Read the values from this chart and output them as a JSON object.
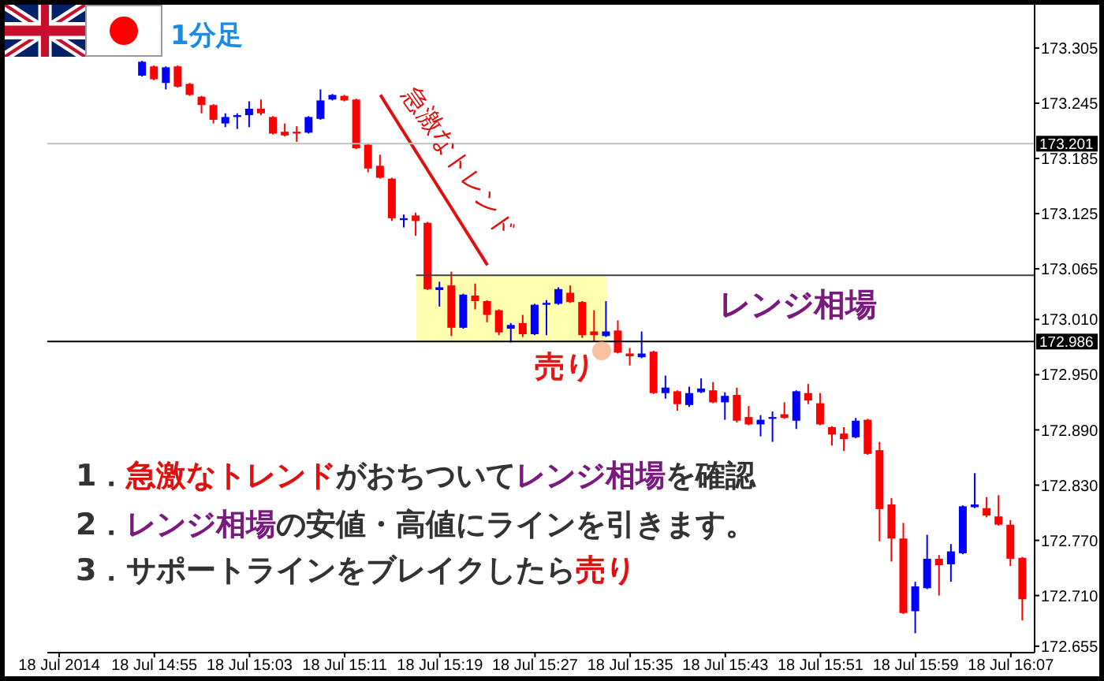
{
  "chart_data": {
    "type": "candlestick",
    "x": [
      "2014-07-18T14:54",
      "2014-07-18T14:55",
      "2014-07-18T14:56",
      "2014-07-18T14:57",
      "2014-07-18T14:58",
      "2014-07-18T14:59",
      "2014-07-18T15:00",
      "2014-07-18T15:01",
      "2014-07-18T15:02",
      "2014-07-18T15:03",
      "2014-07-18T15:04",
      "2014-07-18T15:05",
      "2014-07-18T15:06",
      "2014-07-18T15:07",
      "2014-07-18T15:08",
      "2014-07-18T15:09",
      "2014-07-18T15:10",
      "2014-07-18T15:11",
      "2014-07-18T15:12",
      "2014-07-18T15:13",
      "2014-07-18T15:14",
      "2014-07-18T15:15",
      "2014-07-18T15:16",
      "2014-07-18T15:17",
      "2014-07-18T15:18",
      "2014-07-18T15:19",
      "2014-07-18T15:20",
      "2014-07-18T15:21",
      "2014-07-18T15:22",
      "2014-07-18T15:23",
      "2014-07-18T15:24",
      "2014-07-18T15:25",
      "2014-07-18T15:26",
      "2014-07-18T15:27",
      "2014-07-18T15:28",
      "2014-07-18T15:29",
      "2014-07-18T15:30",
      "2014-07-18T15:31",
      "2014-07-18T15:32",
      "2014-07-18T15:33",
      "2014-07-18T15:34",
      "2014-07-18T15:35",
      "2014-07-18T15:36",
      "2014-07-18T15:37",
      "2014-07-18T15:38",
      "2014-07-18T15:39",
      "2014-07-18T15:40",
      "2014-07-18T15:41",
      "2014-07-18T15:42",
      "2014-07-18T15:43",
      "2014-07-18T15:44",
      "2014-07-18T15:45",
      "2014-07-18T15:46",
      "2014-07-18T15:47",
      "2014-07-18T15:48",
      "2014-07-18T15:49",
      "2014-07-18T15:50",
      "2014-07-18T15:51",
      "2014-07-18T15:52",
      "2014-07-18T15:53",
      "2014-07-18T15:54",
      "2014-07-18T15:55",
      "2014-07-18T15:56",
      "2014-07-18T15:57",
      "2014-07-18T15:58",
      "2014-07-18T15:59",
      "2014-07-18T16:00",
      "2014-07-18T16:01",
      "2014-07-18T16:02",
      "2014-07-18T16:03",
      "2014-07-18T16:04",
      "2014-07-18T16:05",
      "2014-07-18T16:06",
      "2014-07-18T16:07",
      "2014-07-18T16:08"
    ],
    "ohlc": [
      [
        173.275,
        173.291,
        173.274,
        173.29
      ],
      [
        173.285,
        173.286,
        173.27,
        173.271
      ],
      [
        173.267,
        173.285,
        173.26,
        173.284
      ],
      [
        173.285,
        173.286,
        173.262,
        173.263
      ],
      [
        173.266,
        173.267,
        173.253,
        173.254
      ],
      [
        173.252,
        173.253,
        173.234,
        173.243
      ],
      [
        173.243,
        173.244,
        173.223,
        173.227
      ],
      [
        173.223,
        173.234,
        173.219,
        173.23
      ],
      [
        173.23,
        173.234,
        173.217,
        173.232
      ],
      [
        173.232,
        173.247,
        173.219,
        173.239
      ],
      [
        173.239,
        173.249,
        173.232,
        173.234
      ],
      [
        173.23,
        173.231,
        173.211,
        173.212
      ],
      [
        173.214,
        173.223,
        173.209,
        173.21
      ],
      [
        173.214,
        173.22,
        173.203,
        173.212
      ],
      [
        173.213,
        173.231,
        173.212,
        173.23
      ],
      [
        173.228,
        173.26,
        173.227,
        173.248
      ],
      [
        173.249,
        173.255,
        173.248,
        173.254
      ],
      [
        173.253,
        173.254,
        173.247,
        173.248
      ],
      [
        173.249,
        173.25,
        173.195,
        173.196
      ],
      [
        173.2,
        173.201,
        173.17,
        173.174
      ],
      [
        173.177,
        173.189,
        173.163,
        173.164
      ],
      [
        173.163,
        173.164,
        173.117,
        173.12
      ],
      [
        173.118,
        173.124,
        173.11,
        173.12
      ],
      [
        173.123,
        173.126,
        173.101,
        173.117
      ],
      [
        173.115,
        173.116,
        173.042,
        173.043
      ],
      [
        173.042,
        173.051,
        173.024,
        173.045
      ],
      [
        173.047,
        173.062,
        172.992,
        173.001
      ],
      [
        173.001,
        173.038,
        173.0,
        173.037
      ],
      [
        173.036,
        173.049,
        173.021,
        173.03
      ],
      [
        173.03,
        173.031,
        173.007,
        173.015
      ],
      [
        173.02,
        173.021,
        172.993,
        172.996
      ],
      [
        173.0,
        173.006,
        172.985,
        173.004
      ],
      [
        173.006,
        173.015,
        172.991,
        172.994
      ],
      [
        172.994,
        173.027,
        172.993,
        173.026
      ],
      [
        173.026,
        173.031,
        172.993,
        173.028
      ],
      [
        173.027,
        173.045,
        173.026,
        173.043
      ],
      [
        173.039,
        173.047,
        173.028,
        173.029
      ],
      [
        173.029,
        173.03,
        172.99,
        172.993
      ],
      [
        172.997,
        173.02,
        172.986,
        172.993
      ],
      [
        172.992,
        173.03,
        172.991,
        172.997
      ],
      [
        172.998,
        173.009,
        172.973,
        172.974
      ],
      [
        172.973,
        172.979,
        172.96,
        172.97
      ],
      [
        172.969,
        172.997,
        172.968,
        172.973
      ],
      [
        172.975,
        172.976,
        172.929,
        172.93
      ],
      [
        172.93,
        172.949,
        172.924,
        172.936
      ],
      [
        172.932,
        172.933,
        172.911,
        172.918
      ],
      [
        172.917,
        172.937,
        172.915,
        172.93
      ],
      [
        172.931,
        172.946,
        172.93,
        172.935
      ],
      [
        172.933,
        172.942,
        172.919,
        172.92
      ],
      [
        172.92,
        172.931,
        172.901,
        172.927
      ],
      [
        172.928,
        172.936,
        172.898,
        172.9
      ],
      [
        172.904,
        172.916,
        172.895,
        172.896
      ],
      [
        172.896,
        172.906,
        172.883,
        172.901
      ],
      [
        172.902,
        172.91,
        172.877,
        172.904
      ],
      [
        172.907,
        172.92,
        172.902,
        172.903
      ],
      [
        172.9,
        172.933,
        172.891,
        172.932
      ],
      [
        172.93,
        172.94,
        172.918,
        172.922
      ],
      [
        172.919,
        172.93,
        172.895,
        172.896
      ],
      [
        172.893,
        172.894,
        172.873,
        172.885
      ],
      [
        172.886,
        172.893,
        172.867,
        172.88
      ],
      [
        172.882,
        172.903,
        172.881,
        172.9
      ],
      [
        172.901,
        172.902,
        172.863,
        172.864
      ],
      [
        172.868,
        172.877,
        172.769,
        172.804
      ],
      [
        172.809,
        172.816,
        172.747,
        172.772
      ],
      [
        172.772,
        172.789,
        172.69,
        172.691
      ],
      [
        172.693,
        172.725,
        172.669,
        172.72
      ],
      [
        172.718,
        172.776,
        172.717,
        172.75
      ],
      [
        172.75,
        172.754,
        172.71,
        172.743
      ],
      [
        172.744,
        172.766,
        172.725,
        172.758
      ],
      [
        172.756,
        172.808,
        172.755,
        172.807
      ],
      [
        172.806,
        172.843,
        172.805,
        172.809
      ],
      [
        172.805,
        172.817,
        172.795,
        172.797
      ],
      [
        172.796,
        172.819,
        172.786,
        172.787
      ],
      [
        172.787,
        172.792,
        172.742,
        172.75
      ],
      [
        172.751,
        172.752,
        172.683,
        172.706
      ]
    ],
    "colors": [
      "#0000ff",
      "#ff0000",
      "#0000ff",
      "#ff0000",
      "#ff0000",
      "#ff0000",
      "#ff0000",
      "#0000ff",
      "#0000ff",
      "#0000ff",
      "#ff0000",
      "#ff0000",
      "#ff0000",
      "#ff0000",
      "#0000ff",
      "#0000ff",
      "#0000ff",
      "#ff0000",
      "#ff0000",
      "#ff0000",
      "#ff0000",
      "#ff0000",
      "#0000ff",
      "#ff0000",
      "#ff0000",
      "#0000ff",
      "#ff0000",
      "#0000ff",
      "#ff0000",
      "#ff0000",
      "#ff0000",
      "#0000ff",
      "#ff0000",
      "#0000ff",
      "#0000ff",
      "#0000ff",
      "#ff0000",
      "#ff0000",
      "#ff0000",
      "#0000ff",
      "#ff0000",
      "#ff0000",
      "#0000ff",
      "#ff0000",
      "#0000ff",
      "#ff0000",
      "#0000ff",
      "#0000ff",
      "#ff0000",
      "#0000ff",
      "#ff0000",
      "#ff0000",
      "#0000ff",
      "#0000ff",
      "#ff0000",
      "#0000ff",
      "#ff0000",
      "#ff0000",
      "#ff0000",
      "#ff0000",
      "#0000ff",
      "#ff0000",
      "#ff0000",
      "#ff0000",
      "#ff0000",
      "#0000ff",
      "#0000ff",
      "#ff0000",
      "#0000ff",
      "#0000ff",
      "#0000ff",
      "#ff0000",
      "#ff0000",
      "#ff0000",
      "#ff0000"
    ],
    "series": [
      {
        "type": "line",
        "x": [
          "2014-07-18T15:14",
          "2014-07-18T15:23"
        ],
        "values": [
          173.254,
          173.069
        ],
        "color": "#e01010"
      }
    ],
    "xlim": [
      "2014-07-18T14:46",
      "2014-07-18T16:09"
    ],
    "xticks": [
      {
        "value": "2014-07-18T14:47",
        "label": "18 Jul 2014"
      },
      {
        "value": "2014-07-18T14:55",
        "label": "18 Jul 14:55"
      },
      {
        "value": "2014-07-18T15:03",
        "label": "18 Jul 15:03"
      },
      {
        "value": "2014-07-18T15:11",
        "label": "18 Jul 15:11"
      },
      {
        "value": "2014-07-18T15:19",
        "label": "18 Jul 15:19"
      },
      {
        "value": "2014-07-18T15:27",
        "label": "18 Jul 15:27"
      },
      {
        "value": "2014-07-18T15:35",
        "label": "18 Jul 15:35"
      },
      {
        "value": "2014-07-18T15:43",
        "label": "18 Jul 15:43"
      },
      {
        "value": "2014-07-18T15:51",
        "label": "18 Jul 15:51"
      },
      {
        "value": "2014-07-18T15:59",
        "label": "18 Jul 15:59"
      },
      {
        "value": "2014-07-18T16:07",
        "label": "18 Jul 16:07"
      }
    ],
    "ylim": [
      172.648,
      173.352
    ],
    "yticks": [
      172.655,
      {
        "value": 172.71,
        "label": "172.710"
      },
      {
        "value": 172.77,
        "label": "172.770"
      },
      {
        "value": 172.83,
        "label": "172.830"
      },
      {
        "value": 172.89,
        "label": "172.890"
      },
      {
        "value": 172.95,
        "label": "172.950"
      },
      {
        "value": 173.01,
        "label": "173.010"
      },
      173.065,
      173.125,
      173.185,
      173.245,
      173.305
    ],
    "ref_lines": [
      {
        "axis": "y",
        "value": 173.201,
        "label": "173.201",
        "color": "#c0c0c0"
      },
      {
        "axis": "y",
        "value": 172.986,
        "label": "172.986",
        "color": "#000000"
      },
      {
        "axis": "y",
        "value": 173.058,
        "color": "#404040"
      }
    ],
    "bands": [
      {
        "axis": "x",
        "from": "2014-07-18T15:17",
        "to": "2014-07-18T15:33",
        "color": "#ffffb0"
      }
    ],
    "annotations": [
      "1分足",
      "急激なトレンド",
      "レンジ相場",
      "売り",
      "1．",
      "急激なトレンド",
      "がおちついて",
      "レンジ相場",
      "を確認",
      "2．",
      "レンジ相場",
      "の安値・高値にラインを引きます。",
      "3．",
      "サポートラインをブレイクしたら",
      "売り"
    ]
  }
}
